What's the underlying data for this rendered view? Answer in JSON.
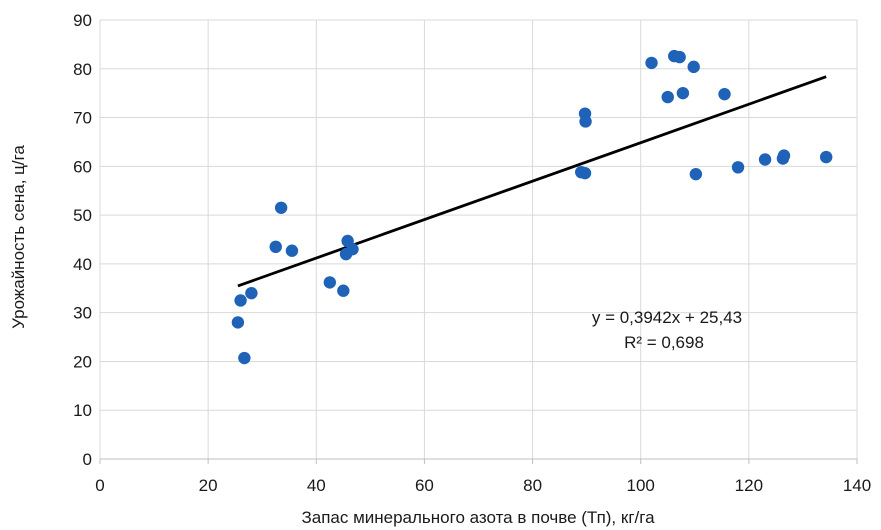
{
  "chart_data": {
    "type": "scatter",
    "xlabel": "Запас минерального  азота в почве (Тп), кг/га",
    "ylabel": "Урожайность сена, ц/га",
    "xlim": [
      0,
      140
    ],
    "ylim": [
      0,
      90
    ],
    "x_ticks": [
      "0",
      "20",
      "40",
      "60",
      "80",
      "100",
      "120",
      "140"
    ],
    "y_ticks": [
      "0",
      "10",
      "20",
      "30",
      "40",
      "50",
      "60",
      "70",
      "80",
      "90"
    ],
    "grid": "vertical and horizontal",
    "point_color": "#1f63b8",
    "trendline_color": "#000000",
    "points": [
      {
        "x": 25.5,
        "y": 28.0
      },
      {
        "x": 26.0,
        "y": 32.5
      },
      {
        "x": 26.7,
        "y": 20.7
      },
      {
        "x": 28.0,
        "y": 34.0
      },
      {
        "x": 32.5,
        "y": 43.5
      },
      {
        "x": 33.5,
        "y": 51.5
      },
      {
        "x": 35.5,
        "y": 42.7
      },
      {
        "x": 42.5,
        "y": 36.2
      },
      {
        "x": 45.0,
        "y": 34.5
      },
      {
        "x": 45.5,
        "y": 42.0
      },
      {
        "x": 45.8,
        "y": 44.7
      },
      {
        "x": 46.7,
        "y": 43.0
      },
      {
        "x": 89.0,
        "y": 58.8
      },
      {
        "x": 89.7,
        "y": 58.6
      },
      {
        "x": 89.7,
        "y": 70.8
      },
      {
        "x": 89.8,
        "y": 69.2
      },
      {
        "x": 102.0,
        "y": 81.2
      },
      {
        "x": 105.0,
        "y": 74.2
      },
      {
        "x": 106.2,
        "y": 82.6
      },
      {
        "x": 107.2,
        "y": 82.4
      },
      {
        "x": 107.8,
        "y": 75.0
      },
      {
        "x": 109.8,
        "y": 80.4
      },
      {
        "x": 110.2,
        "y": 58.4
      },
      {
        "x": 115.5,
        "y": 74.8
      },
      {
        "x": 118.0,
        "y": 59.8
      },
      {
        "x": 123.0,
        "y": 61.4
      },
      {
        "x": 126.3,
        "y": 61.6
      },
      {
        "x": 126.5,
        "y": 62.2
      },
      {
        "x": 134.3,
        "y": 61.9
      }
    ],
    "trendline": {
      "slope": 0.3942,
      "intercept": 25.43,
      "x_range": [
        25.5,
        134.3
      ],
      "equation": "y = 0,3942x + 25,43",
      "r_squared": "R² = 0,698"
    }
  }
}
